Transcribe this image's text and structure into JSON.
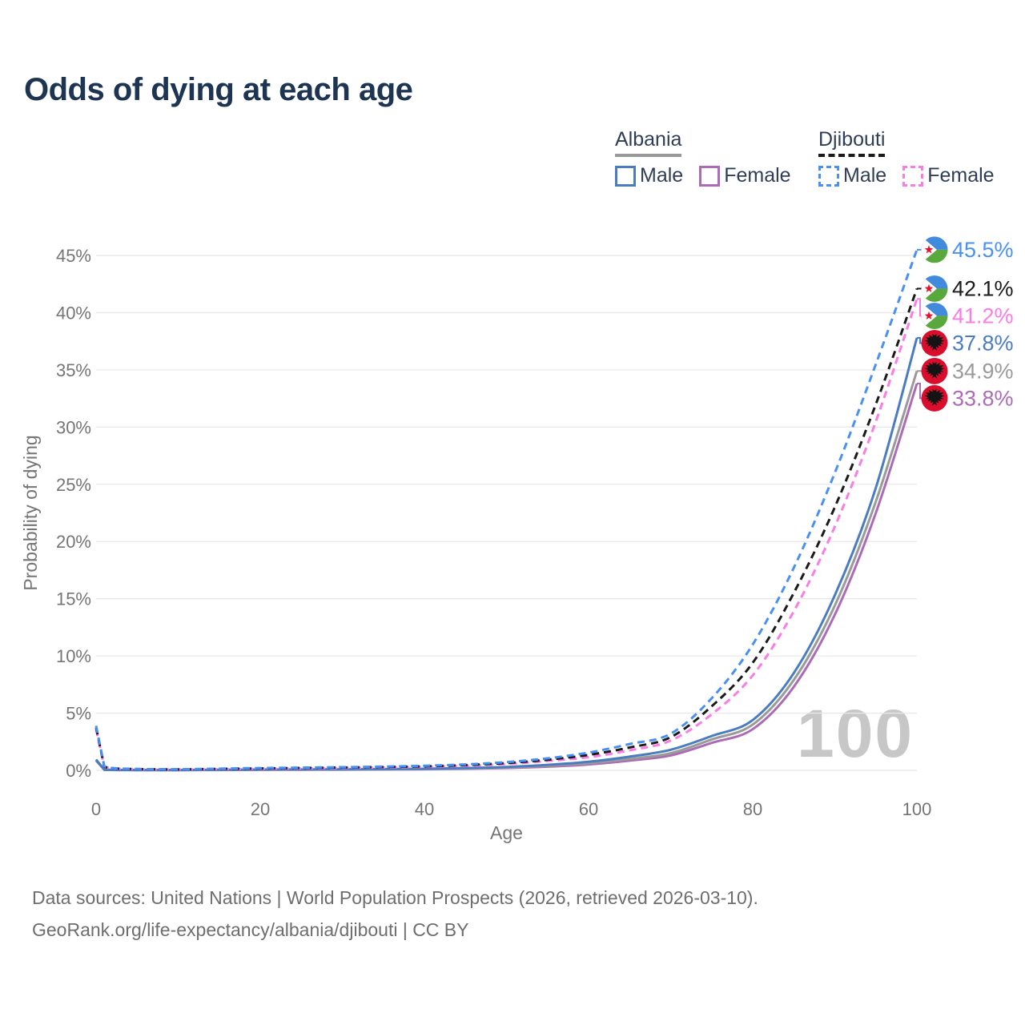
{
  "title": "Odds of dying at each age",
  "legend": {
    "groups": [
      {
        "name": "Albania",
        "line_style": "solid",
        "underline_color": "#999999",
        "items": [
          {
            "label": "Male",
            "color": "#4A7CC0"
          },
          {
            "label": "Female",
            "color": "#AC6BB5"
          }
        ]
      },
      {
        "name": "Djibouti",
        "line_style": "dashed",
        "underline_color": "#1A1A1A",
        "items": [
          {
            "label": "Male",
            "color": "#4A90F4"
          },
          {
            "label": "Female",
            "color": "#FB7CE4"
          }
        ]
      }
    ]
  },
  "watermark_text": "100",
  "footer": {
    "line1": "Data sources: United Nations | World Population Prospects (2026, retrieved 2026-03-10).",
    "line2": "GeoRank.org/life-expectancy/albania/djibouti | CC BY"
  },
  "flags": {
    "djibouti": {
      "blue": "#428BDC",
      "green": "#58A83C",
      "white": "#FFFFFF",
      "star_red": "#E8112D"
    },
    "albania": {
      "red": "#DA0E2C",
      "eagle": "#141414"
    }
  },
  "chart_data": {
    "type": "line",
    "title": "Odds of dying at each age",
    "xlabel": "Age",
    "ylabel": "Probability of dying",
    "xlim": [
      0,
      100
    ],
    "ylim": [
      0,
      45
    ],
    "xticks": [
      0,
      20,
      40,
      60,
      80,
      100
    ],
    "yticks": [
      0,
      5,
      10,
      15,
      20,
      25,
      30,
      35,
      40,
      45
    ],
    "ytick_suffix": "%",
    "grid": true,
    "legend_position": "top-right",
    "x": [
      0,
      1,
      5,
      10,
      15,
      20,
      25,
      30,
      35,
      40,
      45,
      50,
      55,
      60,
      65,
      70,
      75,
      80,
      85,
      90,
      95,
      100
    ],
    "series": [
      {
        "name": "Djibouti Male",
        "country": "djibouti",
        "sex": "male",
        "color": "#4A90F4",
        "dashed": true,
        "end_label": "45.5%",
        "end_value": 45.5,
        "values": [
          3.9,
          0.35,
          0.12,
          0.1,
          0.15,
          0.2,
          0.24,
          0.28,
          0.33,
          0.4,
          0.52,
          0.72,
          1.05,
          1.55,
          2.3,
          3.2,
          6.3,
          11.0,
          17.7,
          26.0,
          35.5,
          45.5
        ]
      },
      {
        "name": "Djibouti Both sexes",
        "country": "djibouti",
        "sex": "all",
        "color": "#1A1A1A",
        "dashed": true,
        "end_label": "42.1%",
        "end_value": 42.1,
        "values": [
          3.75,
          0.32,
          0.11,
          0.09,
          0.13,
          0.17,
          0.21,
          0.25,
          0.29,
          0.35,
          0.46,
          0.64,
          0.93,
          1.35,
          2.0,
          2.9,
          5.6,
          9.4,
          15.5,
          23.0,
          32.0,
          42.1
        ]
      },
      {
        "name": "Djibouti Female",
        "country": "djibouti",
        "sex": "female",
        "color": "#FB7CE4",
        "dashed": true,
        "end_label": "41.2%",
        "end_value": 41.2,
        "values": [
          3.6,
          0.3,
          0.1,
          0.08,
          0.11,
          0.14,
          0.17,
          0.21,
          0.25,
          0.31,
          0.4,
          0.56,
          0.82,
          1.15,
          1.75,
          2.6,
          4.9,
          8.3,
          13.9,
          21.3,
          30.5,
          41.2
        ]
      },
      {
        "name": "Albania Male",
        "country": "albania",
        "sex": "male",
        "color": "#4A7CC0",
        "dashed": false,
        "end_label": "37.8%",
        "end_value": 37.8,
        "values": [
          0.95,
          0.06,
          0.03,
          0.03,
          0.05,
          0.07,
          0.08,
          0.09,
          0.11,
          0.14,
          0.2,
          0.3,
          0.48,
          0.75,
          1.2,
          1.8,
          3.0,
          4.4,
          8.5,
          15.3,
          24.7,
          37.8
        ]
      },
      {
        "name": "Albania Both sexes",
        "country": "albania",
        "sex": "all",
        "color": "#9A9A9A",
        "dashed": false,
        "end_label": "34.9%",
        "end_value": 34.9,
        "values": [
          0.9,
          0.055,
          0.025,
          0.025,
          0.04,
          0.06,
          0.07,
          0.08,
          0.09,
          0.12,
          0.17,
          0.25,
          0.4,
          0.62,
          1.0,
          1.5,
          2.7,
          4.0,
          7.9,
          14.4,
          23.5,
          34.9
        ]
      },
      {
        "name": "Albania Female",
        "country": "albania",
        "sex": "female",
        "color": "#AC6BB5",
        "dashed": false,
        "end_label": "33.8%",
        "end_value": 33.8,
        "values": [
          0.85,
          0.05,
          0.02,
          0.02,
          0.03,
          0.045,
          0.055,
          0.065,
          0.08,
          0.1,
          0.14,
          0.2,
          0.32,
          0.52,
          0.85,
          1.3,
          2.4,
          3.6,
          7.3,
          13.6,
          22.5,
          33.8
        ]
      }
    ]
  }
}
